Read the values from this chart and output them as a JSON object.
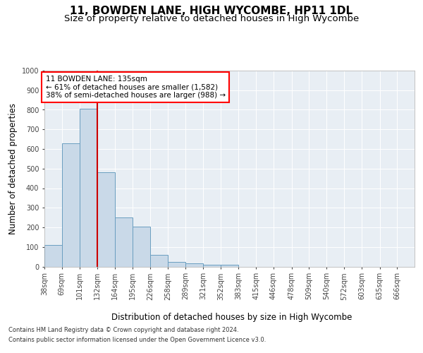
{
  "title": "11, BOWDEN LANE, HIGH WYCOMBE, HP11 1DL",
  "subtitle": "Size of property relative to detached houses in High Wycombe",
  "xlabel": "Distribution of detached houses by size in High Wycombe",
  "ylabel": "Number of detached properties",
  "footnote1": "Contains HM Land Registry data © Crown copyright and database right 2024.",
  "footnote2": "Contains public sector information licensed under the Open Government Licence v3.0.",
  "annotation_line1": "11 BOWDEN LANE: 135sqm",
  "annotation_line2": "← 61% of detached houses are smaller (1,582)",
  "annotation_line3": "38% of semi-detached houses are larger (988) →",
  "bar_color": "#c9d9e8",
  "bar_edge_color": "#6a9ec0",
  "vline_color": "#cc0000",
  "categories": [
    "38sqm",
    "69sqm",
    "101sqm",
    "132sqm",
    "164sqm",
    "195sqm",
    "226sqm",
    "258sqm",
    "289sqm",
    "321sqm",
    "352sqm",
    "383sqm",
    "415sqm",
    "446sqm",
    "478sqm",
    "509sqm",
    "540sqm",
    "572sqm",
    "603sqm",
    "635sqm",
    "666sqm"
  ],
  "bin_edges": [
    38,
    69,
    101,
    132,
    164,
    195,
    226,
    258,
    289,
    321,
    352,
    383,
    415,
    446,
    478,
    509,
    540,
    572,
    603,
    635,
    666,
    697
  ],
  "values": [
    110,
    630,
    805,
    480,
    250,
    205,
    60,
    25,
    17,
    8,
    10,
    0,
    0,
    0,
    0,
    0,
    0,
    0,
    0,
    0,
    0
  ],
  "ylim": [
    0,
    1000
  ],
  "yticks": [
    0,
    100,
    200,
    300,
    400,
    500,
    600,
    700,
    800,
    900,
    1000
  ],
  "bg_color": "#e8eef4",
  "fig_bg": "#ffffff",
  "title_fontsize": 11,
  "subtitle_fontsize": 9.5,
  "axis_label_fontsize": 8.5,
  "tick_fontsize": 7,
  "ann_fontsize": 7.5
}
